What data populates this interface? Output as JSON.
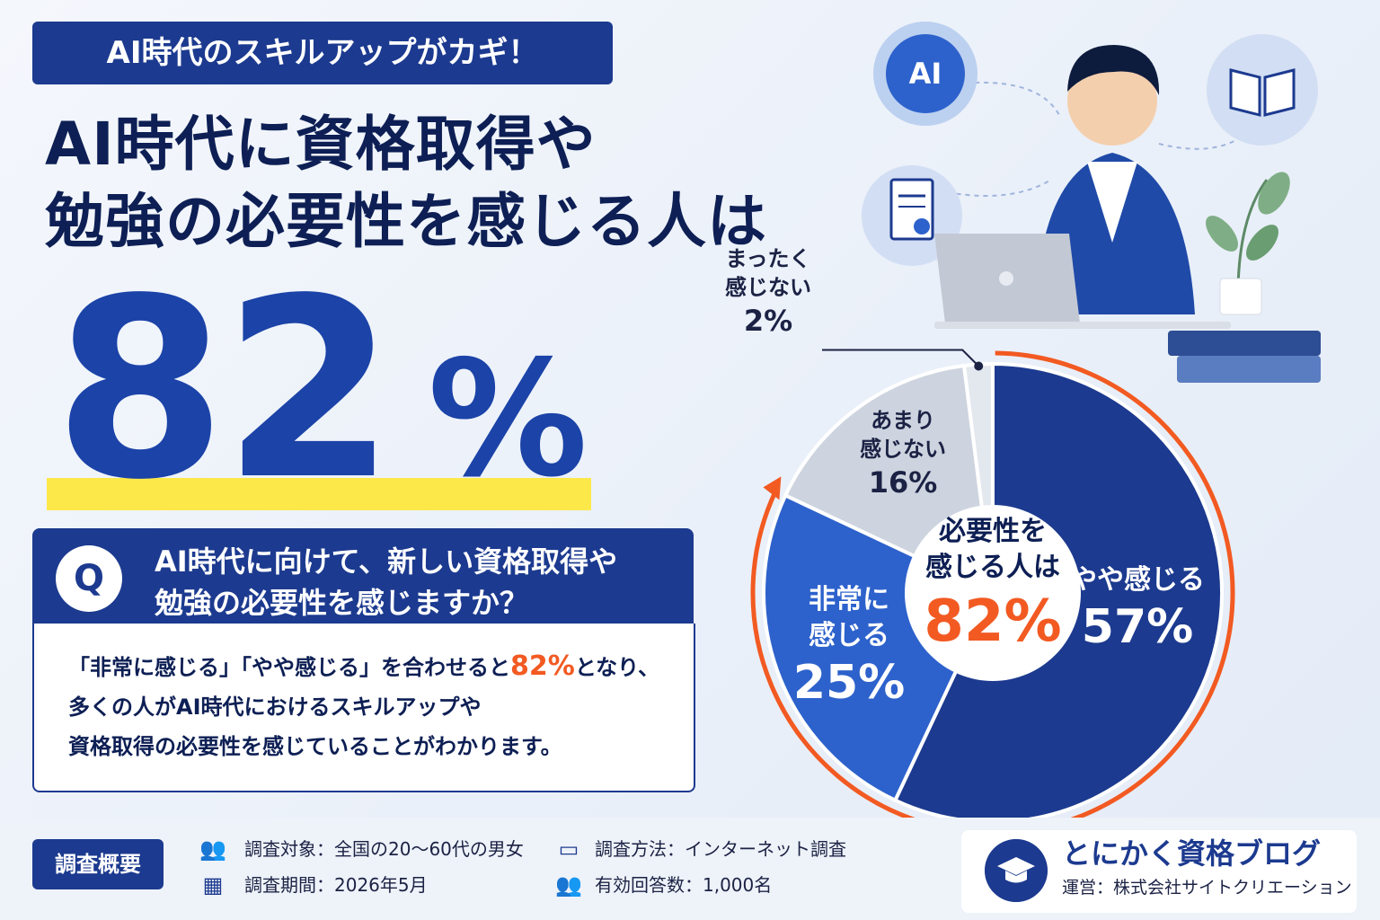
{
  "header": {
    "tag": "AI時代のスキルアップがカギ！",
    "title_line1": "AI時代に資格取得や",
    "title_line2": "勉強の必要性を感じる人は",
    "big_number": "82",
    "big_unit": "%"
  },
  "question": {
    "badge": "Q",
    "line1": "AI時代に向けて、新しい資格取得や",
    "line2": "勉強の必要性を感じますか？",
    "answer_pre": "「非常に感じる」「やや感じる」を合わせると",
    "answer_highlight": "82%",
    "answer_post": "となり、",
    "answer_line2": "多くの人がAI時代におけるスキルアップや",
    "answer_line3": "資格取得の必要性を感じていることがわかります。"
  },
  "illustration": {
    "ai_badge": "AI"
  },
  "chart_data": {
    "type": "pie",
    "center_label_line1": "必要性を",
    "center_label_line2": "感じる人は",
    "center_value": "82%",
    "slices": [
      {
        "label_line1": "やや感じる",
        "label_line2": "",
        "value": 57,
        "display": "57%",
        "color": "#1c3a8f",
        "text_color": "#ffffff"
      },
      {
        "label_line1": "非常に",
        "label_line2": "感じる",
        "value": 25,
        "display": "25%",
        "color": "#2d62cc",
        "text_color": "#ffffff"
      },
      {
        "label_line1": "あまり",
        "label_line2": "感じない",
        "value": 16,
        "display": "16%",
        "color": "#cdd4df",
        "text_color": "#1b2244"
      },
      {
        "label_line1": "まったく",
        "label_line2": "感じない",
        "value": 2,
        "display": "2%",
        "color": "#e3e7ee",
        "text_color": "#1b2244"
      }
    ],
    "highlight_color": "#f25a22",
    "legend": "none"
  },
  "footer": {
    "badge": "調査概要",
    "target": "調査対象：全国の20〜60代の男女",
    "period": "調査期間：2026年5月",
    "method": "調査方法：インターネット調査",
    "responses": "有効回答数：1,000名",
    "brand_name": "とにかく資格ブログ",
    "brand_sub": "運営：株式会社サイトクリエーション"
  }
}
